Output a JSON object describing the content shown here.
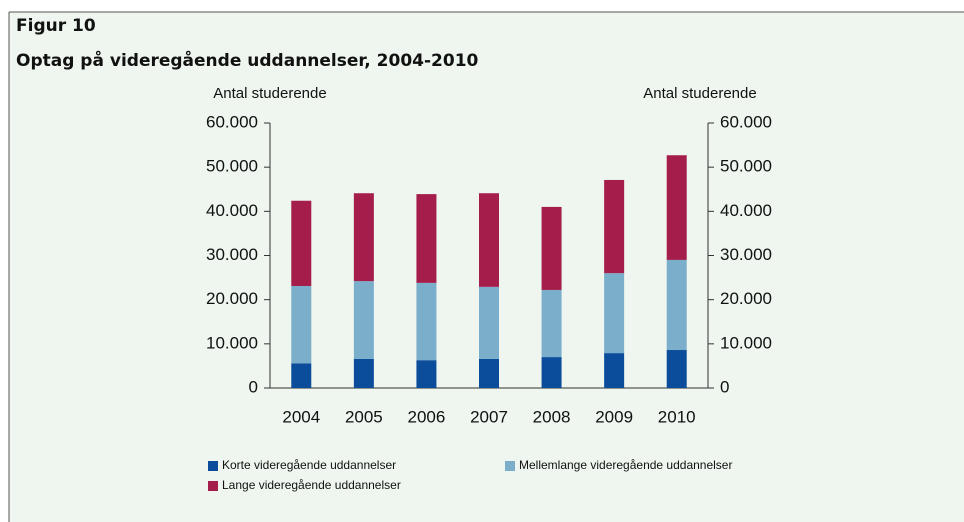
{
  "chart_data": {
    "type": "stacked_bar",
    "title": "Figur 10",
    "subtitle": "Optag på videregående uddannelser, 2004-2010",
    "y_label": "Antal studerende",
    "y2_label": "Antal studerende",
    "categories": [
      "2004",
      "2005",
      "2006",
      "2007",
      "2008",
      "2009",
      "2010"
    ],
    "series": [
      {
        "name": "Korte videregående uddannelser",
        "color": "#0b4d9b",
        "values": [
          5600,
          6600,
          6300,
          6600,
          7000,
          7900,
          8600
        ]
      },
      {
        "name": "Mellemlange videregående uddannelser",
        "color": "#7aaecb",
        "values": [
          17500,
          17600,
          17500,
          16300,
          15200,
          18100,
          20400
        ]
      },
      {
        "name": "Lange videregående uddannelser",
        "color": "#a51d4a",
        "values": [
          19300,
          19900,
          20100,
          21200,
          18800,
          21100,
          23700
        ]
      }
    ],
    "ylim": [
      0,
      60000
    ],
    "yticks": [
      0,
      {
        "value": 10000,
        "label": "10.000"
      },
      {
        "value": 20000,
        "label": "20.000"
      },
      {
        "value": 30000,
        "label": "30.000"
      },
      {
        "value": 40000,
        "label": "40.000"
      },
      {
        "value": 50000,
        "label": "50.000"
      },
      {
        "value": 60000,
        "label": "60.000"
      }
    ],
    "y2lim": [
      0,
      60000
    ],
    "y2ticks": [
      0,
      {
        "value": 10000,
        "label": "10.000"
      },
      {
        "value": 20000,
        "label": "20.000"
      },
      {
        "value": 30000,
        "label": "30.000"
      },
      {
        "value": 40000,
        "label": "40.000"
      },
      {
        "value": 50000,
        "label": "50.000"
      },
      {
        "value": 60000,
        "label": "60.000"
      }
    ],
    "grid": false,
    "legend": "bottom"
  }
}
